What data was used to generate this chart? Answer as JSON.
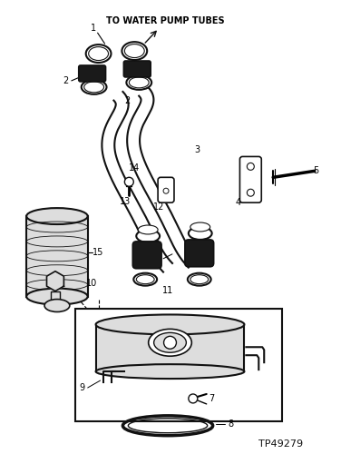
{
  "title": "TO WATER PUMP TUBES",
  "part_number": "TP49279",
  "bg": "#ffffff",
  "lc": "#111111",
  "dark": "#222222",
  "gray": "#aaaaaa",
  "lgray": "#dddddd"
}
